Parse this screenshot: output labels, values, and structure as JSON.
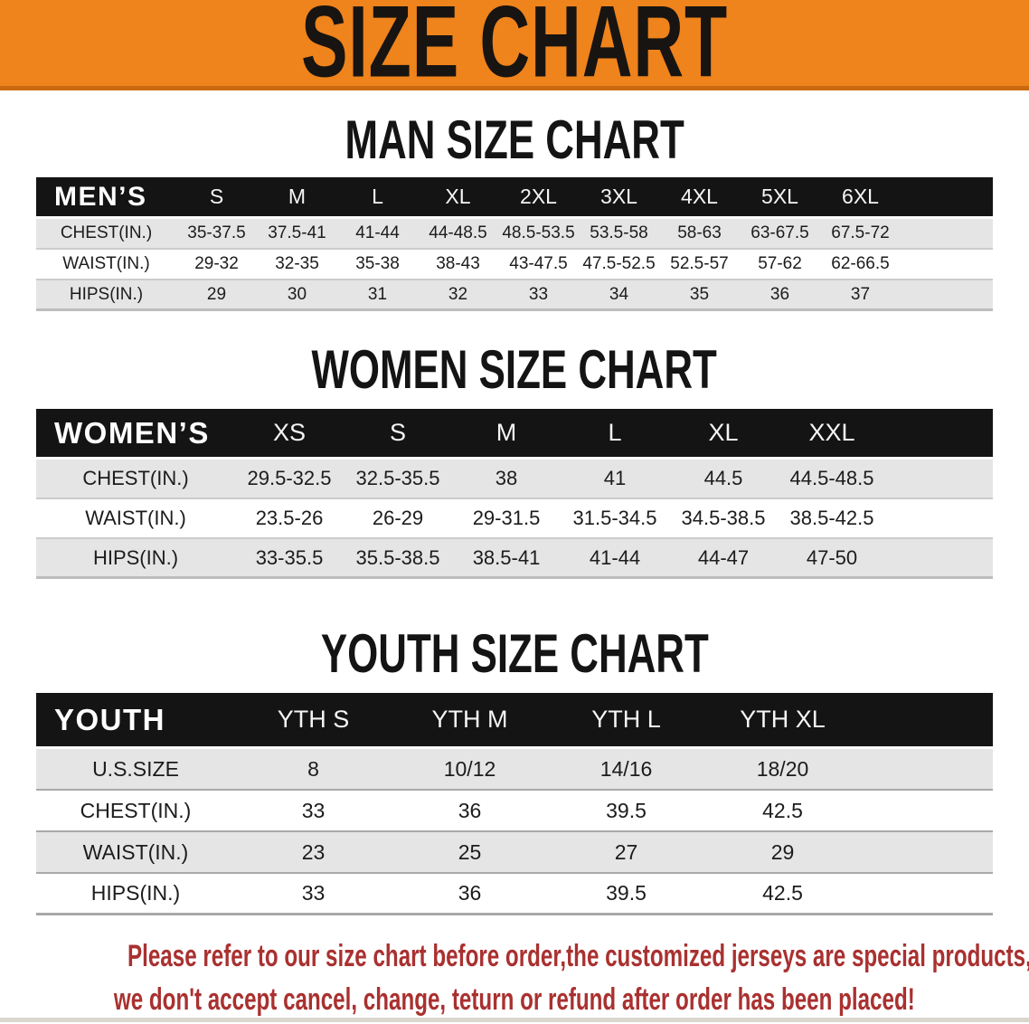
{
  "banner": {
    "title": "SIZE CHART"
  },
  "sections": [
    {
      "heading": "MAN SIZE CHART",
      "table": {
        "header_label": "MEN’S",
        "columns": [
          "S",
          "M",
          "L",
          "XL",
          "2XL",
          "3XL",
          "4XL",
          "5XL",
          "6XL"
        ],
        "rows": [
          {
            "label": "CHEST(IN.)",
            "values": [
              "35-37.5",
              "37.5-41",
              "41-44",
              "44-48.5",
              "48.5-53.5",
              "53.5-58",
              "58-63",
              "63-67.5",
              "67.5-72"
            ]
          },
          {
            "label": "WAIST(IN.)",
            "values": [
              "29-32",
              "32-35",
              "35-38",
              "38-43",
              "43-47.5",
              "47.5-52.5",
              "52.5-57",
              "57-62",
              "62-66.5"
            ]
          },
          {
            "label": "HIPS(IN.)",
            "values": [
              "29",
              "30",
              "31",
              "32",
              "33",
              "34",
              "35",
              "36",
              "37"
            ]
          }
        ]
      }
    },
    {
      "heading": "WOMEN SIZE CHART",
      "table": {
        "header_label": "WOMEN’S",
        "columns": [
          "XS",
          "S",
          "M",
          "L",
          "XL",
          "XXL"
        ],
        "rows": [
          {
            "label": "CHEST(IN.)",
            "values": [
              "29.5-32.5",
              "32.5-35.5",
              "38",
              "41",
              "44.5",
              "44.5-48.5"
            ]
          },
          {
            "label": "WAIST(IN.)",
            "values": [
              "23.5-26",
              "26-29",
              "29-31.5",
              "31.5-34.5",
              "34.5-38.5",
              "38.5-42.5"
            ]
          },
          {
            "label": "HIPS(IN.)",
            "values": [
              "33-35.5",
              "35.5-38.5",
              "38.5-41",
              "41-44",
              "44-47",
              "47-50"
            ]
          }
        ]
      }
    },
    {
      "heading": "YOUTH SIZE CHART",
      "table": {
        "header_label": "YOUTH",
        "columns": [
          "YTH S",
          "YTH M",
          "YTH L",
          "YTH XL"
        ],
        "rows": [
          {
            "label": "U.S.SIZE",
            "values": [
              "8",
              "10/12",
              "14/16",
              "18/20"
            ]
          },
          {
            "label": "CHEST(IN.)",
            "values": [
              "33",
              "36",
              "39.5",
              "42.5"
            ]
          },
          {
            "label": "WAIST(IN.)",
            "values": [
              "23",
              "25",
              "27",
              "29"
            ]
          },
          {
            "label": "HIPS(IN.)",
            "values": [
              "33",
              "36",
              "39.5",
              "42.5"
            ]
          }
        ]
      }
    }
  ],
  "footer": {
    "line1": "Please refer to our size chart before order,the customized jerseys are special products,",
    "line2": "we don't accept cancel, change, teturn or refund after order has been placed!"
  },
  "colors": {
    "banner_bg": "#EF831C",
    "banner_edge": "#C96A10",
    "table_header_bg": "#141414",
    "row_alt_bg": "#E5E5E5",
    "footer_text": "#A93130"
  }
}
